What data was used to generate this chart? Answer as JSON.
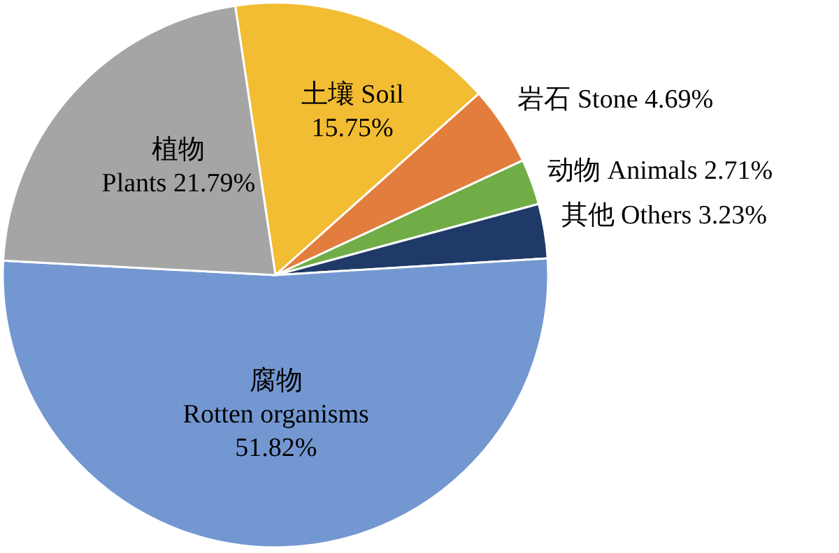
{
  "chart_data": {
    "type": "pie",
    "categories": [
      "土壤 Soil",
      "岩石 Stone",
      "动物 Animals",
      "其他 Others",
      "腐物 Rotten organisms",
      "植物 Plants"
    ],
    "values": [
      15.75,
      4.69,
      2.71,
      3.23,
      51.82,
      21.79
    ],
    "value_labels": [
      "15.75%",
      "4.69%",
      "2.71%",
      "3.23%",
      "51.82%",
      "21.79%"
    ],
    "colors": [
      "#f2bd33",
      "#e37d3d",
      "#70ad47",
      "#1f3a68",
      "#7397d1",
      "#a5a5a5"
    ]
  }
}
